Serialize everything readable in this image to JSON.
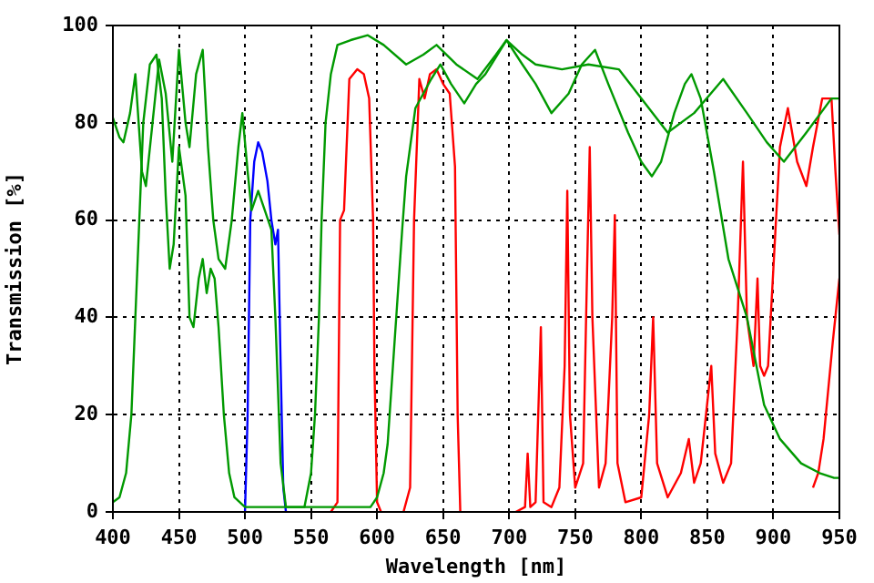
{
  "chart_data": {
    "type": "line",
    "xlabel": "Wavelength [nm]",
    "ylabel": "Transmission [%]",
    "xlim": [
      400,
      950
    ],
    "xticks": [
      400,
      450,
      500,
      550,
      600,
      650,
      700,
      750,
      800,
      850,
      900,
      950
    ],
    "ylim": [
      0,
      100
    ],
    "yticks": [
      0,
      20,
      40,
      60,
      80,
      100
    ],
    "grid": true,
    "marker": "none",
    "line_style": "solid",
    "series": [
      {
        "color": "#009900",
        "x": [
          400,
          405,
          408,
          413,
          417,
          422,
          425,
          430,
          435,
          440,
          445,
          450,
          455,
          458,
          463,
          468,
          472,
          476,
          480,
          485,
          490,
          495,
          498,
          502,
          505,
          510,
          515,
          520,
          523,
          527,
          531,
          545,
          550,
          553,
          556,
          558,
          561,
          565,
          570,
          580,
          593,
          605,
          622,
          635,
          645,
          660,
          676,
          690,
          698,
          710,
          720,
          740,
          760,
          783,
          800,
          820,
          840,
          862,
          880,
          895,
          908,
          925,
          944,
          950
        ],
        "values": [
          81,
          77,
          76,
          82,
          90,
          70,
          67,
          80,
          93,
          86,
          72,
          95,
          80,
          75,
          90,
          95,
          75,
          60,
          52,
          50,
          60,
          75,
          82,
          70,
          62,
          66,
          62,
          58,
          40,
          10,
          1,
          1,
          8,
          20,
          40,
          60,
          80,
          90,
          96,
          97,
          98,
          96,
          92,
          94,
          96,
          92,
          89,
          94,
          97,
          94,
          92,
          91,
          92,
          91,
          85,
          78,
          82,
          89,
          82,
          76,
          72,
          78,
          85,
          85
        ]
      },
      {
        "color": "#009900",
        "x": [
          400,
          405,
          410,
          414,
          417,
          420,
          423,
          428,
          433,
          437,
          440,
          443,
          446,
          450,
          455,
          458,
          461,
          465,
          468,
          471,
          474,
          477,
          480,
          484,
          488,
          492,
          500,
          530,
          560,
          595,
          600,
          605,
          608,
          612,
          615,
          619,
          622,
          629,
          641,
          648,
          656,
          666,
          675,
          682,
          698,
          710,
          720,
          732,
          745,
          755,
          765,
          775,
          790,
          800,
          808,
          815,
          825,
          833,
          838,
          845,
          855,
          866,
          880,
          893,
          905,
          921,
          935,
          946,
          950
        ],
        "values": [
          2,
          3,
          8,
          20,
          40,
          60,
          80,
          92,
          94,
          85,
          65,
          50,
          55,
          75,
          65,
          40,
          38,
          48,
          52,
          45,
          50,
          48,
          38,
          20,
          8,
          3,
          1,
          1,
          1,
          1,
          3,
          8,
          14,
          30,
          42,
          58,
          69,
          83,
          89,
          92,
          88,
          84,
          88,
          90,
          97,
          92,
          88,
          82,
          86,
          92,
          95,
          88,
          78,
          72,
          69,
          72,
          82,
          88,
          90,
          85,
          70,
          52,
          40,
          22,
          15,
          10,
          8,
          7,
          7
        ]
      },
      {
        "color": "#0000ff",
        "x": [
          500,
          502,
          504,
          507,
          510,
          513,
          517,
          520,
          523,
          525,
          527,
          529,
          531
        ],
        "values": [
          0,
          20,
          60,
          72,
          76,
          74,
          68,
          60,
          55,
          58,
          30,
          5,
          0
        ]
      },
      {
        "color": "#ff0000",
        "x": [
          565,
          570,
          572,
          575,
          579,
          585,
          590,
          594,
          597,
          598,
          600,
          603
        ],
        "values": [
          0,
          2,
          60,
          62,
          89,
          91,
          90,
          85,
          60,
          30,
          2,
          0
        ]
      },
      {
        "color": "#ff0000",
        "x": [
          620,
          625,
          628,
          632,
          636,
          640,
          645,
          650,
          655,
          659,
          661,
          663
        ],
        "values": [
          0,
          5,
          60,
          89,
          85,
          90,
          91,
          88,
          86,
          71,
          20,
          0
        ]
      },
      {
        "color": "#ff0000",
        "x": [
          705,
          712,
          714,
          716,
          720,
          724,
          726,
          732,
          738,
          742,
          744,
          746,
          750,
          756,
          759,
          761,
          763,
          768,
          773,
          778,
          780,
          782,
          788,
          800,
          806,
          809,
          812,
          820,
          830,
          836,
          840,
          845,
          851,
          853,
          856,
          862,
          868,
          873,
          877,
          880,
          885,
          888,
          890,
          893,
          896,
          900,
          905,
          911,
          918,
          925,
          930,
          937,
          944,
          947,
          950
        ],
        "values": [
          0,
          1,
          12,
          1,
          2,
          38,
          2,
          1,
          5,
          30,
          66,
          20,
          5,
          10,
          50,
          75,
          40,
          5,
          10,
          40,
          61,
          10,
          2,
          3,
          20,
          40,
          10,
          3,
          8,
          15,
          6,
          10,
          25,
          30,
          12,
          6,
          10,
          40,
          72,
          40,
          30,
          48,
          30,
          28,
          30,
          50,
          75,
          83,
          72,
          67,
          75,
          85,
          85,
          70,
          57
        ]
      },
      {
        "color": "#ff0000",
        "x": [
          930,
          934,
          938,
          945,
          950
        ],
        "values": [
          5,
          8,
          15,
          35,
          48
        ]
      }
    ]
  }
}
